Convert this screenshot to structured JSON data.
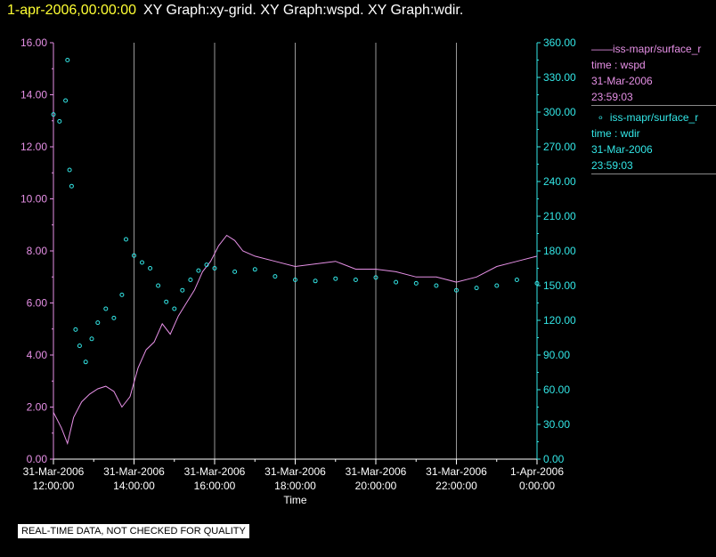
{
  "header": {
    "timestamp": "1-apr-2006,00:00:00",
    "titles": "XY Graph:xy-grid.  XY Graph:wspd.  XY Graph:wdir."
  },
  "legend": {
    "wspd": {
      "name": "iss-mapr/surface_r",
      "line1": "time : wspd",
      "line2": "31-Mar-2006",
      "line3": "23:59:03"
    },
    "wdir": {
      "name": "iss-mapr/surface_r",
      "line1": "time : wdir",
      "line2": "31-Mar-2006",
      "line3": "23:59:03"
    }
  },
  "note": "REAL-TIME DATA, NOT CHECKED FOR QUALITY",
  "chart_data": {
    "type": "line",
    "xlabel": "Time",
    "x_ticks": [
      [
        "31-Mar-2006",
        "12:00:00"
      ],
      [
        "31-Mar-2006",
        "14:00:00"
      ],
      [
        "31-Mar-2006",
        "16:00:00"
      ],
      [
        "31-Mar-2006",
        "18:00:00"
      ],
      [
        "31-Mar-2006",
        "20:00:00"
      ],
      [
        "31-Mar-2006",
        "22:00:00"
      ],
      [
        "1-Apr-2006",
        "0:00:00"
      ]
    ],
    "xlim_hours": [
      12,
      24
    ],
    "y_left": {
      "series": "wspd",
      "ylim": [
        0,
        16
      ],
      "ticks": [
        "0.00",
        "2.00",
        "4.00",
        "6.00",
        "8.00",
        "10.00",
        "12.00",
        "14.00",
        "16.00"
      ],
      "color": "#e690e6"
    },
    "y_right": {
      "series": "wdir",
      "ylim": [
        0,
        360
      ],
      "ticks": [
        "0.00",
        "30.00",
        "60.00",
        "90.00",
        "120.00",
        "150.00",
        "180.00",
        "210.00",
        "240.00",
        "270.00",
        "300.00",
        "330.00",
        "360.00"
      ],
      "color": "#33e6e6"
    },
    "grid": "vertical",
    "series": [
      {
        "key": "wspd",
        "style": "line",
        "color": "#e690e6",
        "points": [
          [
            12.0,
            1.8
          ],
          [
            12.2,
            1.2
          ],
          [
            12.35,
            0.6
          ],
          [
            12.5,
            1.6
          ],
          [
            12.7,
            2.2
          ],
          [
            12.9,
            2.5
          ],
          [
            13.1,
            2.7
          ],
          [
            13.3,
            2.8
          ],
          [
            13.5,
            2.6
          ],
          [
            13.7,
            2.0
          ],
          [
            13.9,
            2.4
          ],
          [
            14.1,
            3.5
          ],
          [
            14.3,
            4.2
          ],
          [
            14.5,
            4.5
          ],
          [
            14.7,
            5.2
          ],
          [
            14.9,
            4.8
          ],
          [
            15.1,
            5.5
          ],
          [
            15.3,
            6.0
          ],
          [
            15.5,
            6.5
          ],
          [
            15.7,
            7.2
          ],
          [
            15.9,
            7.6
          ],
          [
            16.1,
            8.2
          ],
          [
            16.3,
            8.6
          ],
          [
            16.5,
            8.4
          ],
          [
            16.7,
            8.0
          ],
          [
            17.0,
            7.8
          ],
          [
            17.5,
            7.6
          ],
          [
            18.0,
            7.4
          ],
          [
            18.5,
            7.5
          ],
          [
            19.0,
            7.6
          ],
          [
            19.5,
            7.3
          ],
          [
            20.0,
            7.3
          ],
          [
            20.5,
            7.2
          ],
          [
            21.0,
            7.0
          ],
          [
            21.5,
            7.0
          ],
          [
            22.0,
            6.8
          ],
          [
            22.5,
            7.0
          ],
          [
            23.0,
            7.4
          ],
          [
            23.5,
            7.6
          ],
          [
            24.0,
            7.8
          ]
        ]
      },
      {
        "key": "wdir",
        "style": "points",
        "color": "#33e6e6",
        "points": [
          [
            12.0,
            298
          ],
          [
            12.15,
            292
          ],
          [
            12.3,
            310
          ],
          [
            12.35,
            345
          ],
          [
            12.4,
            250
          ],
          [
            12.45,
            236
          ],
          [
            12.55,
            112
          ],
          [
            12.65,
            98
          ],
          [
            12.8,
            84
          ],
          [
            12.95,
            104
          ],
          [
            13.1,
            118
          ],
          [
            13.3,
            130
          ],
          [
            13.5,
            122
          ],
          [
            13.7,
            142
          ],
          [
            13.8,
            190
          ],
          [
            14.0,
            176
          ],
          [
            14.2,
            170
          ],
          [
            14.4,
            165
          ],
          [
            14.6,
            150
          ],
          [
            14.8,
            136
          ],
          [
            15.0,
            130
          ],
          [
            15.2,
            146
          ],
          [
            15.4,
            155
          ],
          [
            15.6,
            163
          ],
          [
            15.8,
            168
          ],
          [
            16.0,
            165
          ],
          [
            16.5,
            162
          ],
          [
            17.0,
            164
          ],
          [
            17.5,
            158
          ],
          [
            18.0,
            155
          ],
          [
            18.5,
            154
          ],
          [
            19.0,
            156
          ],
          [
            19.5,
            155
          ],
          [
            20.0,
            157
          ],
          [
            20.5,
            153
          ],
          [
            21.0,
            152
          ],
          [
            21.5,
            150
          ],
          [
            22.0,
            146
          ],
          [
            22.5,
            148
          ],
          [
            23.0,
            150
          ],
          [
            23.5,
            155
          ],
          [
            24.0,
            152
          ]
        ]
      }
    ]
  }
}
